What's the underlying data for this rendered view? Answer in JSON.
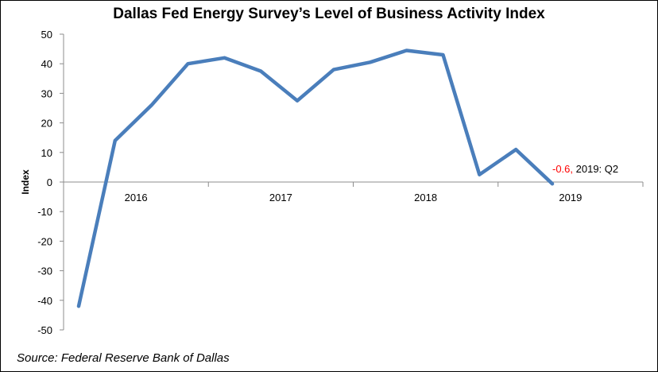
{
  "chart_data": {
    "type": "line",
    "title": "Dallas Fed Energy Survey’s Level of Business Activity Index",
    "ylabel": "Index",
    "xlabel": "",
    "ylim": [
      -50,
      50
    ],
    "yticks": [
      "50",
      "40",
      "30",
      "20",
      "10",
      "0",
      "-10",
      "-20",
      "-30",
      "-40",
      "-50"
    ],
    "x_labels": [
      "2016",
      "2017",
      "2018",
      "2019"
    ],
    "x": [
      "2015: Q4",
      "2016: Q1",
      "2016: Q2",
      "2016: Q3",
      "2016: Q4",
      "2017: Q1",
      "2017: Q2",
      "2017: Q3",
      "2017: Q4",
      "2018: Q1",
      "2018: Q2",
      "2018: Q3",
      "2018: Q4",
      "2019: Q1",
      "2019: Q2"
    ],
    "series": [
      {
        "values": [
          -42,
          14,
          26,
          40,
          42,
          37.5,
          27.5,
          38,
          40.5,
          44.5,
          43,
          2.5,
          11,
          -0.6,
          -0.6
        ]
      }
    ],
    "line_color": "#4a7ebb",
    "annotation": {
      "value_text": "-0.6,",
      "label_text": " 2019: Q2",
      "value_color": "#ff0000"
    },
    "grid": false,
    "legend": "none"
  },
  "source": "Source: Federal Reserve Bank of Dallas"
}
